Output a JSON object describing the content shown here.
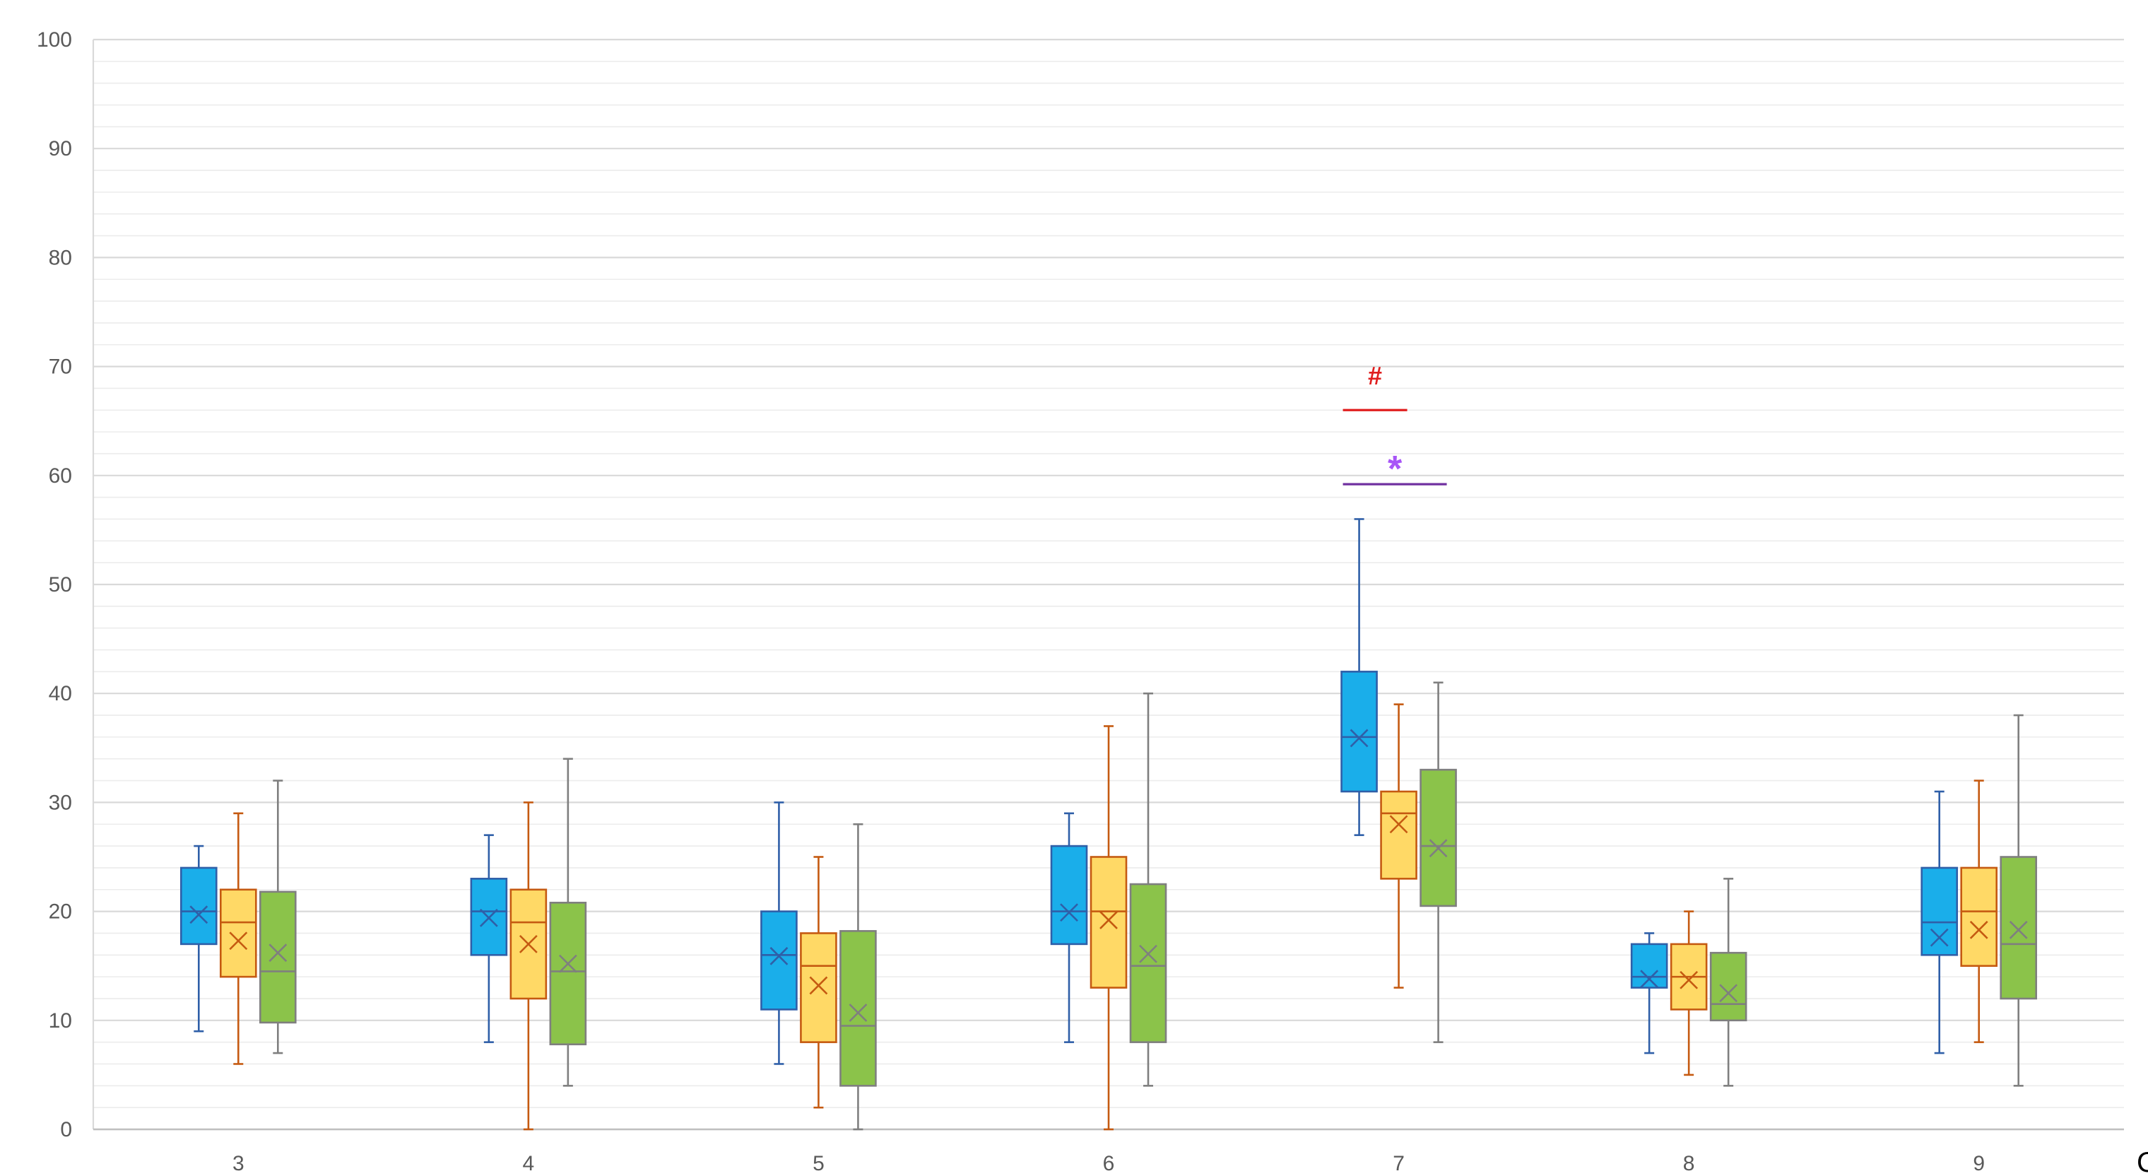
{
  "chart_data": {
    "type": "box",
    "title": "",
    "xlabel": "CpG-",
    "ylabel": "",
    "ylim": [
      0,
      100
    ],
    "yticks": [
      0,
      10,
      20,
      30,
      40,
      50,
      60,
      70,
      80,
      90,
      100
    ],
    "minor_grid_step": 2,
    "grid": true,
    "categories": [
      "3",
      "4",
      "5",
      "6",
      "7",
      "8",
      "9"
    ],
    "series": [
      {
        "color": "#1aaeea",
        "stroke": "#2f5fa8",
        "boxes": [
          {
            "min": 9,
            "q1": 17,
            "median": 20,
            "q3": 24,
            "max": 26,
            "mean": 19.7
          },
          {
            "min": 8,
            "q1": 16,
            "median": 20,
            "q3": 23,
            "max": 27,
            "mean": 19.4
          },
          {
            "min": 6,
            "q1": 11,
            "median": 16,
            "q3": 20,
            "max": 30,
            "mean": 15.9
          },
          {
            "min": 8,
            "q1": 17,
            "median": 20,
            "q3": 26,
            "max": 29,
            "mean": 19.9
          },
          {
            "min": 27,
            "q1": 31,
            "median": 36,
            "q3": 42,
            "max": 56,
            "mean": 35.9
          },
          {
            "min": 7,
            "q1": 13,
            "median": 14,
            "q3": 17,
            "max": 18,
            "mean": 13.8
          },
          {
            "min": 7,
            "q1": 16,
            "median": 19,
            "q3": 24,
            "max": 31,
            "mean": 17.6
          }
        ]
      },
      {
        "color": "#ffd966",
        "stroke": "#c55a11",
        "boxes": [
          {
            "min": 6,
            "q1": 14,
            "median": 19,
            "q3": 22,
            "max": 29,
            "mean": 17.3
          },
          {
            "min": 0,
            "q1": 12,
            "median": 19,
            "q3": 22,
            "max": 30,
            "mean": 17
          },
          {
            "min": 2,
            "q1": 8,
            "median": 15,
            "q3": 18,
            "max": 25,
            "mean": 13.2
          },
          {
            "min": 0,
            "q1": 13,
            "median": 20,
            "q3": 25,
            "max": 37,
            "mean": 19.2
          },
          {
            "min": 13,
            "q1": 23,
            "median": 29,
            "q3": 31,
            "max": 39,
            "mean": 28
          },
          {
            "min": 5,
            "q1": 11,
            "median": 14,
            "q3": 17,
            "max": 20,
            "mean": 13.7
          },
          {
            "min": 8,
            "q1": 15,
            "median": 20,
            "q3": 24,
            "max": 32,
            "mean": 18.3
          }
        ]
      },
      {
        "color": "#8bc34a",
        "stroke": "#7f7f7f",
        "boxes": [
          {
            "min": 7,
            "q1": 9.8,
            "median": 14.5,
            "q3": 21.8,
            "max": 32,
            "mean": 16.2
          },
          {
            "min": 4,
            "q1": 7.8,
            "median": 14.5,
            "q3": 20.8,
            "max": 34,
            "mean": 15.2
          },
          {
            "min": 0,
            "q1": 4,
            "median": 9.5,
            "q3": 18.2,
            "max": 28,
            "mean": 10.7
          },
          {
            "min": 4,
            "q1": 8,
            "median": 15,
            "q3": 22.5,
            "max": 40,
            "mean": 16.1
          },
          {
            "min": 8,
            "q1": 20.5,
            "median": 26,
            "q3": 33,
            "max": 41,
            "mean": 25.8
          },
          {
            "min": 4,
            "q1": 10,
            "median": 11.5,
            "q3": 16.2,
            "max": 23,
            "mean": 12.5
          },
          {
            "min": 4,
            "q1": 12,
            "median": 17,
            "q3": 25,
            "max": 38,
            "mean": 18.3
          }
        ]
      }
    ],
    "annotations": [
      {
        "text": "#",
        "color": "#e01e1e",
        "category": "7",
        "from_series": 0,
        "to_series": 1,
        "level": 66,
        "label_level": 69
      },
      {
        "text": "*",
        "color": "#7030a0",
        "text_color": "#a855f7",
        "category": "7",
        "from_series": 0,
        "to_series": 2,
        "level": 59.2,
        "label_level": 61.3
      }
    ]
  }
}
